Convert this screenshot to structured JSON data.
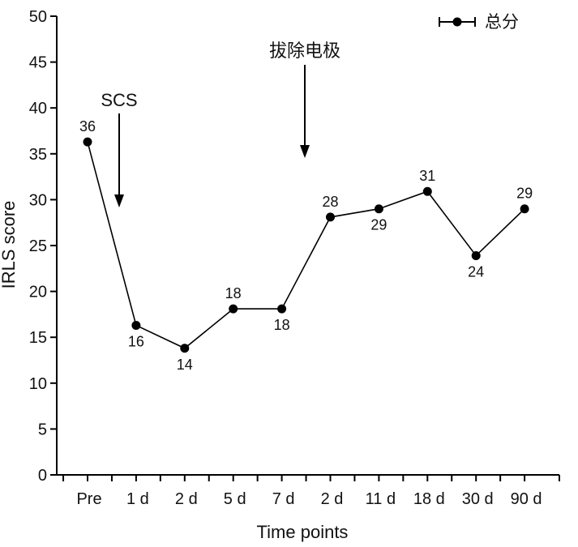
{
  "chart_data": {
    "type": "line",
    "categories": [
      "Pre",
      "1 d",
      "2 d",
      "5 d",
      "7 d",
      "2 d",
      "11 d",
      "18 d",
      "30 d",
      "90 d"
    ],
    "series": [
      {
        "name": "总分",
        "values": [
          36,
          16,
          14,
          18,
          18,
          28,
          29,
          31,
          24,
          29
        ]
      }
    ],
    "plotted_values": [
      36.3,
      16.3,
      13.8,
      18.1,
      18.1,
      28.1,
      29.0,
      30.9,
      23.9,
      29.0
    ],
    "point_labels": [
      "36",
      "16",
      "14",
      "18",
      "18",
      "28",
      "29",
      "31",
      "24",
      "29"
    ],
    "point_label_position": [
      "above",
      "below",
      "below",
      "above",
      "below",
      "above",
      "below",
      "above",
      "below",
      "above"
    ],
    "xlabel": "Time points",
    "ylabel": "IRLS score",
    "ylim": [
      0,
      50
    ],
    "yticks": [
      0,
      5,
      10,
      15,
      20,
      25,
      30,
      35,
      40,
      45,
      50
    ],
    "grid": false,
    "legend_position": "top-right",
    "annotations": [
      {
        "text": "SCS",
        "between": [
          "Pre",
          "1 d"
        ]
      },
      {
        "text": "拔除电极",
        "between": [
          "7 d",
          "2 d"
        ]
      }
    ],
    "colors": {
      "line": "#000000",
      "marker": "#000000"
    }
  }
}
